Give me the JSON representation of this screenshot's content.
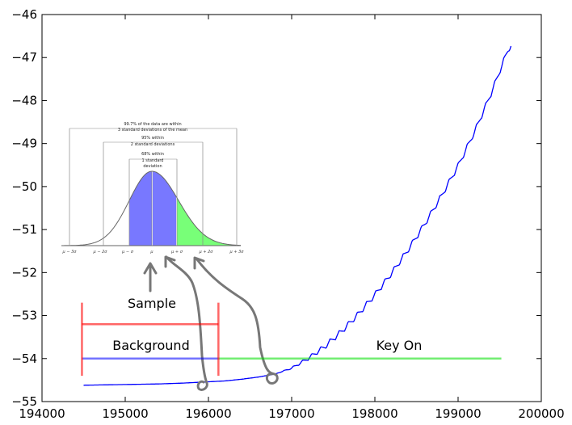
{
  "chart_data": {
    "type": "line",
    "title": "",
    "xlabel": "",
    "ylabel": "",
    "xlim": [
      194000,
      200000
    ],
    "ylim": [
      -55,
      -46
    ],
    "x_ticks": [
      194000,
      195000,
      196000,
      197000,
      198000,
      199000,
      200000
    ],
    "x_tick_labels": [
      "194000",
      "195000",
      "196000",
      "197000",
      "198000",
      "199000",
      "200000"
    ],
    "y_ticks": [
      -46,
      -47,
      -48,
      -49,
      -50,
      -51,
      -52,
      -53,
      -54,
      -55
    ],
    "y_tick_labels": [
      "−46",
      "−47",
      "−48",
      "−49",
      "−50",
      "−51",
      "−52",
      "−53",
      "−54",
      "−55"
    ],
    "grid": false,
    "legend": "none",
    "series": [
      {
        "color": "#0000ff",
        "x": [
          194500,
          194800,
          195100,
          195400,
          195700,
          196000,
          196200,
          196400,
          196600,
          196800,
          197000,
          197200,
          197400,
          197600,
          197800,
          198000,
          198200,
          198400,
          198600,
          198800,
          199000,
          199200,
          199400,
          199500,
          199600,
          199640
        ],
        "y": [
          -54.62,
          -54.61,
          -54.6,
          -54.59,
          -54.57,
          -54.54,
          -54.52,
          -54.48,
          -54.43,
          -54.36,
          -54.2,
          -53.95,
          -53.65,
          -53.3,
          -52.9,
          -52.45,
          -51.95,
          -51.4,
          -50.8,
          -50.15,
          -49.45,
          -48.65,
          -47.75,
          -47.25,
          -46.75,
          -46.65
        ],
        "ripple_amplitude": 0.09,
        "ripple_period": 110
      }
    ],
    "annotations": {
      "background_label": "Background",
      "key_on_label": "Key On",
      "sample_label": "Sample",
      "background_bracket": {
        "x_start": 194480,
        "x_end": 196120,
        "y_bar": -53.2,
        "y_top": -52.7,
        "y_bottom": -54.4,
        "color": "#ff0000"
      },
      "background_line": {
        "x_start": 194480,
        "x_end": 196120,
        "y": -54.0,
        "color": "#0000ff"
      },
      "key_on_line": {
        "x_start": 196120,
        "x_end": 199520,
        "y": -54.0,
        "color": "#00e000"
      }
    },
    "inset": {
      "header": "99.7% of the data are within",
      "header2": "3 standard deviations of the mean",
      "label_95a": "95% within",
      "label_95b": "2 standard deviations",
      "label_68a": "68% within",
      "label_68b": "1 standard",
      "label_68c": "deviation",
      "ticks": [
        "μ − 3σ",
        "μ − 2σ",
        "μ − σ",
        "μ",
        "μ + σ",
        "μ + 2σ",
        "μ + 3σ"
      ],
      "colors": {
        "blue_fill": "#7878ff",
        "green_fill": "#78ff78",
        "curve": "#666666"
      }
    }
  }
}
